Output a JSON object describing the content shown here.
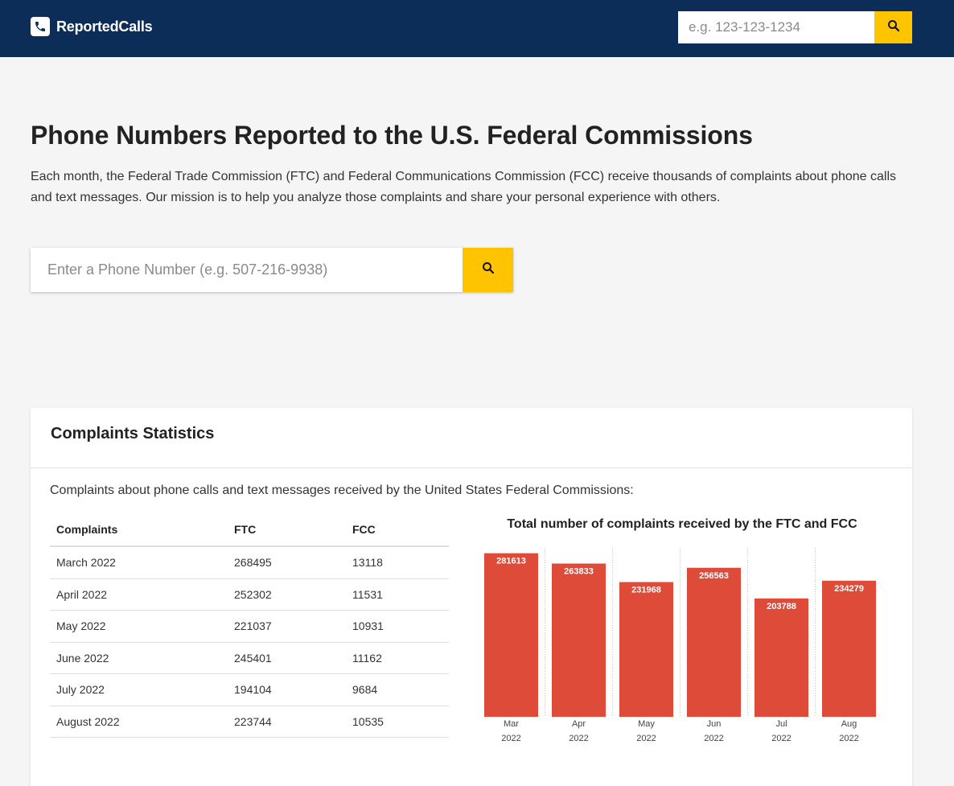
{
  "header": {
    "brand": "ReportedCalls",
    "search_placeholder": "e.g. 123-123-1234"
  },
  "hero": {
    "title": "Phone Numbers Reported to the U.S. Federal Commissions",
    "intro": "Each month, the Federal Trade Commission (FTC) and Federal Communications Commission (FCC) receive thousands of complaints about phone calls and text messages. Our mission is to help you analyze those complaints and share your personal experience with others.",
    "search_placeholder": "Enter a Phone Number (e.g. 507-216-9938)"
  },
  "stats": {
    "title": "Complaints Statistics",
    "description": "Complaints about phone calls and text messages received by the United States Federal Commissions:",
    "columns": [
      "Complaints",
      "FTC",
      "FCC"
    ],
    "rows": [
      [
        "March 2022",
        "268495",
        "13118"
      ],
      [
        "April 2022",
        "252302",
        "11531"
      ],
      [
        "May 2022",
        "221037",
        "10931"
      ],
      [
        "June 2022",
        "245401",
        "11162"
      ],
      [
        "July 2022",
        "194104",
        "9684"
      ],
      [
        "August 2022",
        "223744",
        "10535"
      ]
    ]
  },
  "colors": {
    "navbar": "#0d2d59",
    "accent": "#ffc400",
    "bar": "#df4b39"
  },
  "icons": {
    "brand": "phone-icon",
    "search": "search-icon"
  },
  "chart_data": {
    "type": "bar",
    "title": "Total number of complaints received by the FTC and FCC",
    "categories": [
      [
        "Mar",
        "2022"
      ],
      [
        "Apr",
        "2022"
      ],
      [
        "May",
        "2022"
      ],
      [
        "Jun",
        "2022"
      ],
      [
        "Jul",
        "2022"
      ],
      [
        "Aug",
        "2022"
      ]
    ],
    "values": [
      281613,
      263833,
      231968,
      256563,
      203788,
      234279
    ],
    "xlabel": "",
    "ylabel": "",
    "ylim": [
      0,
      295000
    ],
    "grid": "vertical dotted separators",
    "data_labels": "inside top of bar"
  }
}
